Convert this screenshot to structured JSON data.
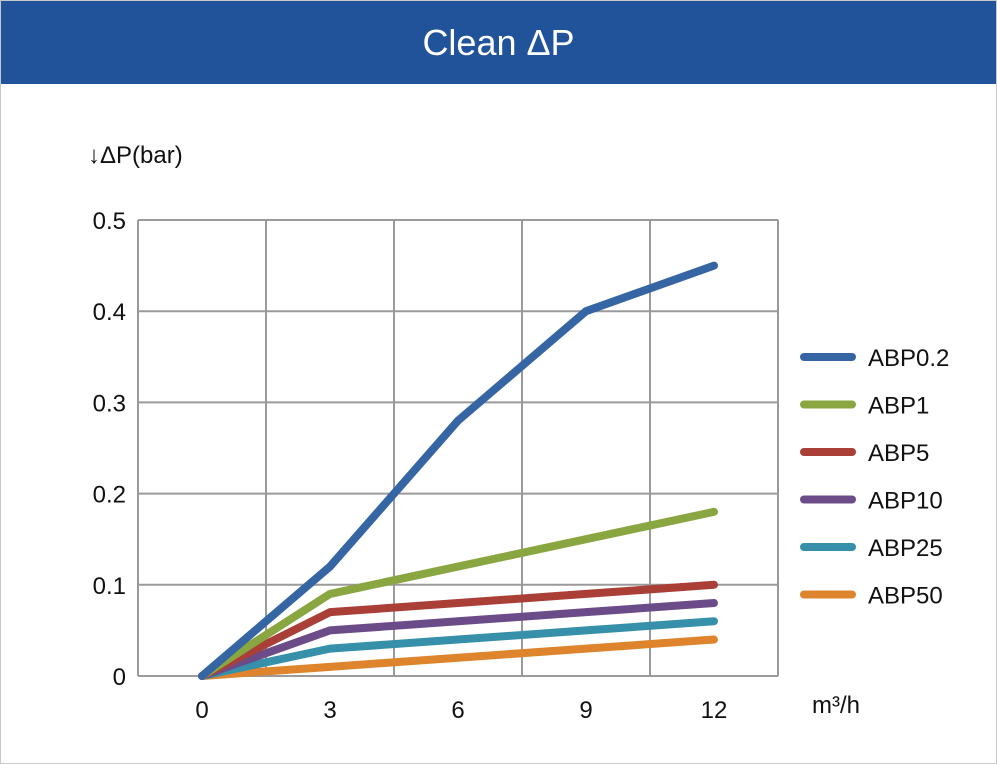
{
  "chart_data": {
    "type": "line",
    "title": "Clean ΔP",
    "ylabel": "↓ΔP(bar)",
    "xlabel": "m³/h",
    "categories": [
      "0",
      "3",
      "6",
      "9",
      "12"
    ],
    "x": [
      0,
      3,
      6,
      9,
      12
    ],
    "ylim": [
      0,
      0.5
    ],
    "yticks": [
      "0",
      "0.1",
      "0.2",
      "0.3",
      "0.4",
      "0.5"
    ],
    "grid": true,
    "legend_position": "right",
    "series": [
      {
        "name": "ABP0.2",
        "color": "#3566a3",
        "values": [
          0,
          0.12,
          0.28,
          0.4,
          0.45
        ]
      },
      {
        "name": "ABP1",
        "color": "#89a641",
        "values": [
          0,
          0.09,
          0.12,
          0.15,
          0.18
        ]
      },
      {
        "name": "ABP5",
        "color": "#aa3f38",
        "values": [
          0,
          0.07,
          0.08,
          0.09,
          0.1
        ]
      },
      {
        "name": "ABP10",
        "color": "#6b4c88",
        "values": [
          0,
          0.05,
          0.06,
          0.07,
          0.08
        ]
      },
      {
        "name": "ABP25",
        "color": "#3690aa",
        "values": [
          0,
          0.03,
          0.04,
          0.05,
          0.06
        ]
      },
      {
        "name": "ABP50",
        "color": "#dd842c",
        "values": [
          0,
          0.01,
          0.02,
          0.03,
          0.04
        ]
      }
    ]
  }
}
